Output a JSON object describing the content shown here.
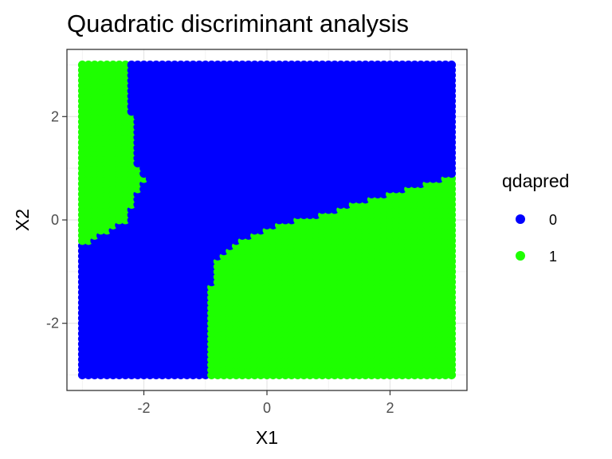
{
  "chart_data": {
    "type": "scatter",
    "title": "Quadratic discriminant analysis",
    "xlabel": "X1",
    "ylabel": "X2",
    "xlim": [
      -3.25,
      3.25
    ],
    "ylim": [
      -3.3,
      3.3
    ],
    "x_ticks": [
      -2,
      0,
      2
    ],
    "y_ticks": [
      -2,
      0,
      2
    ],
    "x_tick_labels": [
      "-2",
      "0",
      "2"
    ],
    "y_tick_labels": [
      "-2",
      "0",
      "2"
    ],
    "grid": true,
    "legend": {
      "title": "qdapred",
      "placement": "right",
      "entries": [
        {
          "label": "0",
          "color": "#0000FF"
        },
        {
          "label": "1",
          "color": "#1EFF00"
        }
      ]
    },
    "grid_points": {
      "x_range": [
        -3,
        3
      ],
      "y_range": [
        -3,
        3
      ],
      "step": 0.1,
      "class_colors": {
        "0": "#0000FF",
        "1": "#1EFF00"
      }
    },
    "regions": {
      "class1_upper_left": {
        "x1_boundary_by_x2": [
          [
            3.0,
            -2.3
          ],
          [
            2.0,
            -2.2
          ],
          [
            1.0,
            -2.1
          ],
          [
            0.8,
            -2.0
          ],
          [
            0.3,
            -2.2
          ],
          [
            0.0,
            -2.3
          ],
          [
            -0.2,
            -2.6
          ],
          [
            -0.4,
            -2.9
          ]
        ]
      },
      "class1_lower_right": {
        "x2_boundary_by_x1": [
          [
            -0.8,
            -3.0
          ],
          [
            -0.9,
            -2.2
          ],
          [
            -0.9,
            -1.2
          ],
          [
            -0.8,
            -0.8
          ],
          [
            -0.7,
            -0.6
          ],
          [
            -0.5,
            -0.45
          ],
          [
            -0.2,
            -0.25
          ],
          [
            0.0,
            -0.15
          ],
          [
            0.5,
            0.0
          ],
          [
            1.0,
            0.15
          ],
          [
            1.5,
            0.35
          ],
          [
            2.0,
            0.5
          ],
          [
            2.5,
            0.68
          ],
          [
            3.0,
            0.85
          ]
        ]
      }
    }
  }
}
